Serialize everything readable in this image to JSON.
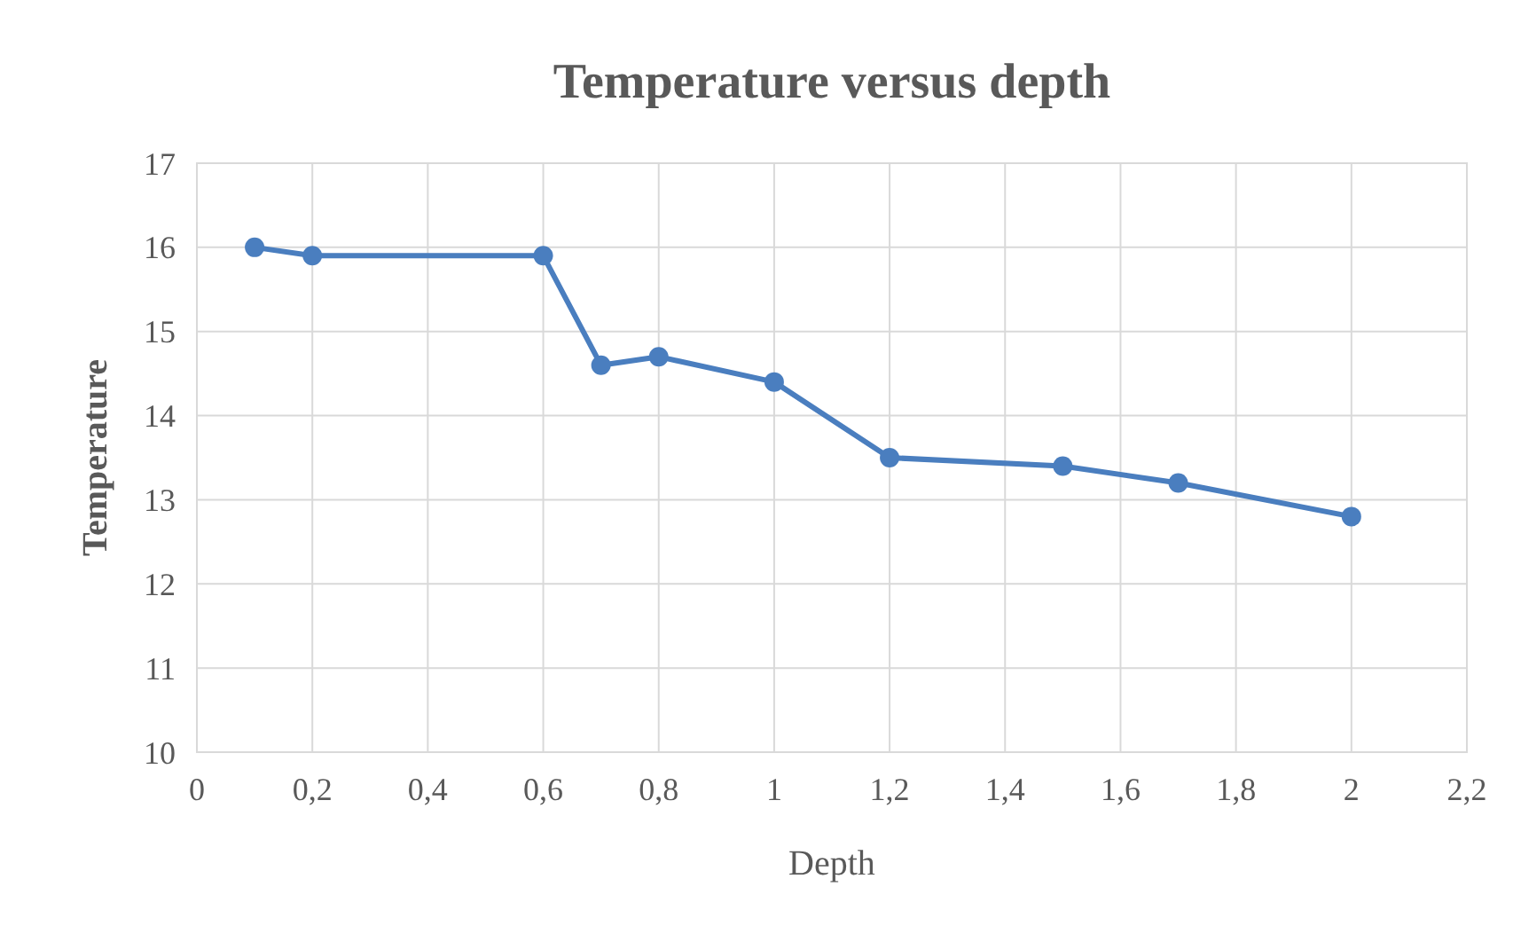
{
  "chart_data": {
    "type": "line",
    "title": "Temperature versus depth",
    "xlabel": "Depth",
    "ylabel": "Temperature",
    "x": [
      0.1,
      0.2,
      0.6,
      0.7,
      0.8,
      1.0,
      1.2,
      1.5,
      1.7,
      2.0
    ],
    "series": [
      {
        "color": "#4a7ebf",
        "values": [
          16.0,
          15.9,
          15.9,
          14.6,
          14.7,
          14.4,
          13.5,
          13.4,
          13.2,
          12.8
        ]
      }
    ],
    "xlim": [
      0,
      2.2
    ],
    "xticks": [
      0,
      {
        "value": 0.2,
        "label": "0,2"
      },
      {
        "value": 0.4,
        "label": "0,4"
      },
      {
        "value": 0.6,
        "label": "0,6"
      },
      {
        "value": 0.8,
        "label": "0,8"
      },
      1,
      {
        "value": 1.2,
        "label": "1,2"
      },
      {
        "value": 1.4,
        "label": "1,4"
      },
      {
        "value": 1.6,
        "label": "1,6"
      },
      {
        "value": 1.8,
        "label": "1,8"
      },
      2,
      {
        "value": 2.2,
        "label": "2,2"
      }
    ],
    "ylim": [
      10,
      17
    ],
    "yticks": [
      10,
      11,
      12,
      13,
      14,
      15,
      16,
      17
    ],
    "grid": true,
    "marker": "circle",
    "line_style": "solid"
  }
}
